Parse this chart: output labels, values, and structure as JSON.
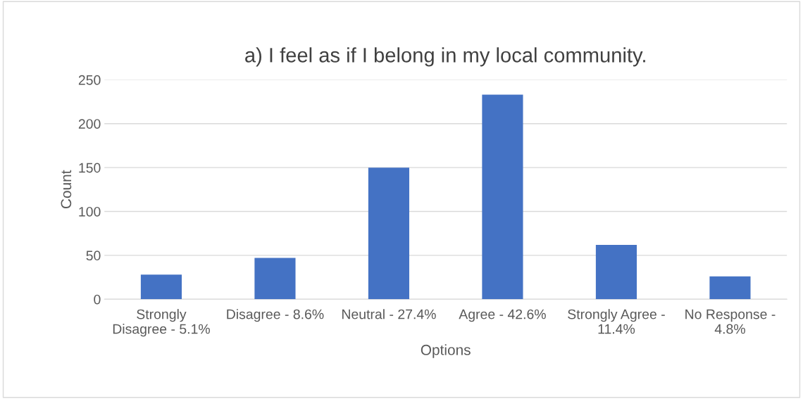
{
  "chart_data": {
    "type": "bar",
    "title": "a) I feel as if I belong in my local community.",
    "xlabel": "Options",
    "ylabel": "Count",
    "categories": [
      "Strongly Disagree - 5.1%",
      "Disagree - 8.6%",
      "Neutral - 27.4%",
      "Agree - 42.6%",
      "Strongly Agree - 11.4%",
      "No Response - 4.8%"
    ],
    "values": [
      28,
      47,
      150,
      233,
      62,
      26
    ],
    "color": "#4472c4",
    "ylim": [
      0,
      250
    ],
    "yticks": [
      0,
      50,
      100,
      150,
      200,
      250
    ],
    "grid": "y",
    "legend": false
  }
}
